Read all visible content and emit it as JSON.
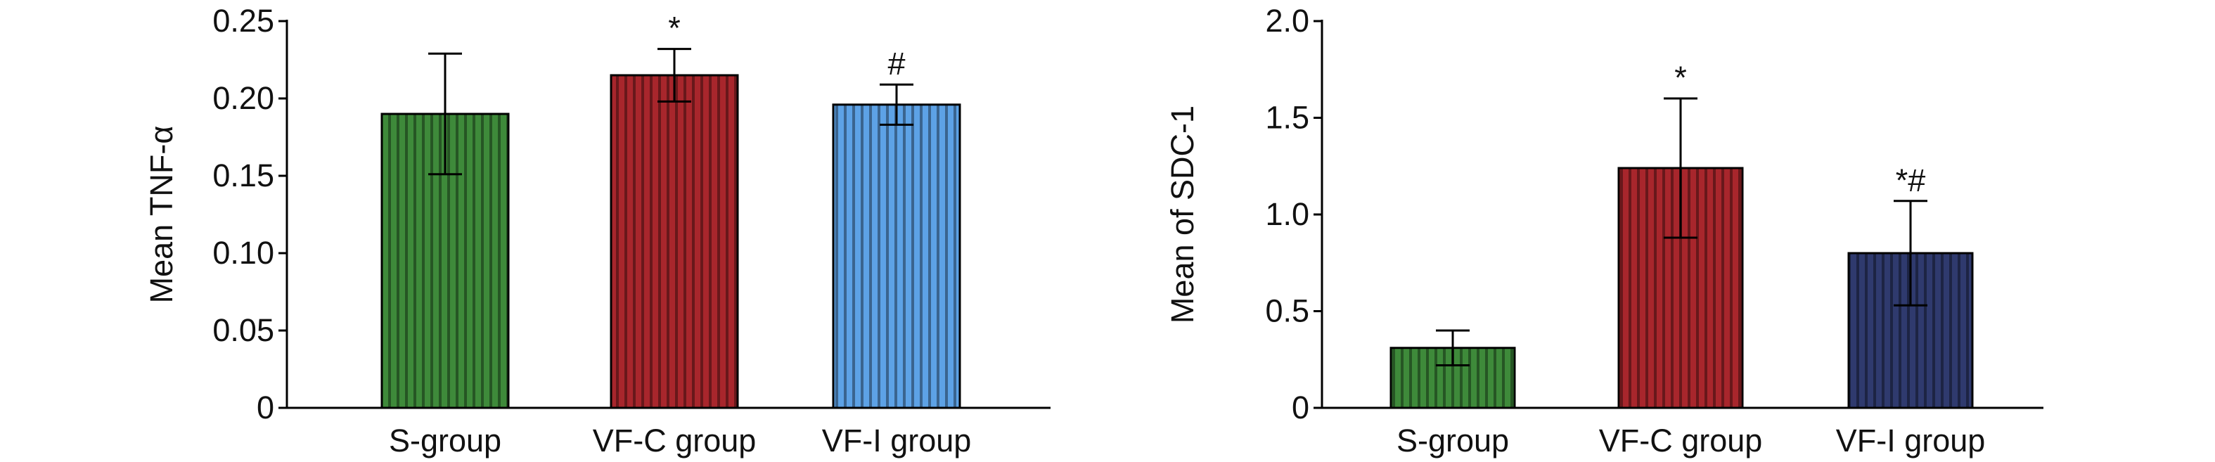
{
  "chart_data": [
    {
      "type": "bar",
      "title": "",
      "xlabel": "",
      "ylabel": "Mean TNF-α",
      "categories": [
        "S-group",
        "VF-C group",
        "VF-I group"
      ],
      "values": [
        0.19,
        0.215,
        0.196
      ],
      "error": [
        0.039,
        0.017,
        0.013
      ],
      "annotations": [
        "",
        "*",
        "#"
      ],
      "ylim": [
        0,
        0.25
      ],
      "yticks": [
        0,
        0.05,
        0.1,
        0.15,
        0.2,
        0.25
      ],
      "yticklabels": [
        "0",
        "0.05",
        "0.10",
        "0.15",
        "0.20",
        "0.25"
      ],
      "colors": [
        "#3e8a3a",
        "#a8262c",
        "#5da2e6"
      ],
      "grid": false,
      "legend": "none"
    },
    {
      "type": "bar",
      "title": "",
      "xlabel": "",
      "ylabel": "Mean of SDC-1",
      "categories": [
        "S-group",
        "VF-C group",
        "VF-I group"
      ],
      "values": [
        0.31,
        1.24,
        0.8
      ],
      "error": [
        0.09,
        0.36,
        0.27
      ],
      "annotations": [
        "",
        "*",
        "*#"
      ],
      "ylim": [
        0,
        2.0
      ],
      "yticks": [
        0,
        0.5,
        1.0,
        1.5,
        2.0
      ],
      "yticklabels": [
        "0",
        "0.5",
        "1.0",
        "1.5",
        "2.0"
      ],
      "colors": [
        "#3e8a3a",
        "#a8262c",
        "#2f3a6e"
      ],
      "grid": false,
      "legend": "none"
    }
  ]
}
